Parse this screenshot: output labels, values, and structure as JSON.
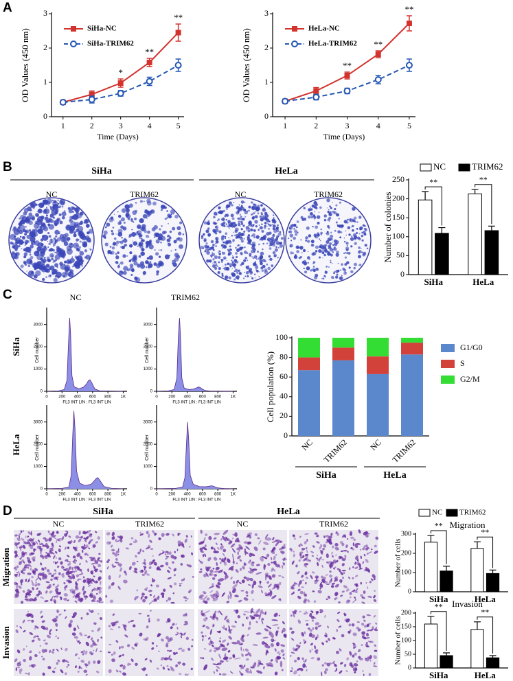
{
  "figure": {
    "panel_labels": [
      "A",
      "B",
      "C",
      "D"
    ],
    "B_groups": [
      "SiHa",
      "HeLa"
    ],
    "B_columns": [
      "NC",
      "TRIM62",
      "NC",
      "TRIM62"
    ],
    "C_columns": [
      "NC",
      "TRIM62"
    ],
    "C_rows": [
      "SiHa",
      "HeLa"
    ],
    "D_groups": [
      "SiHa",
      "HeLa"
    ],
    "D_columns": [
      "NC",
      "TRIM62",
      "NC",
      "TRIM62"
    ],
    "D_rows": [
      "Migration",
      "Invasion"
    ]
  },
  "chart_data": [
    {
      "type": "line",
      "x": [
        1,
        2,
        3,
        4,
        5
      ],
      "xlim": [
        0.6,
        5.2
      ],
      "xticks": [
        1,
        2,
        3,
        4,
        5
      ],
      "ylim": [
        0,
        3
      ],
      "yticks": [
        0,
        1,
        2,
        3
      ],
      "xlabel": "Time (Days)",
      "ylabel": "OD Values (450 nm)",
      "legend": "upper left",
      "series": [
        {
          "name": "SiHa-NC",
          "color": "#d2332f",
          "marker": "square",
          "linestyle": "solid",
          "values": [
            0.42,
            0.65,
            0.98,
            1.58,
            2.45
          ],
          "errors": [
            0.05,
            0.1,
            0.12,
            0.12,
            0.25
          ]
        },
        {
          "name": "SiHa-TRIM62",
          "color": "#2456b3",
          "marker": "circle",
          "linestyle": "dashed",
          "values": [
            0.42,
            0.5,
            0.68,
            1.03,
            1.5
          ],
          "errors": [
            0.05,
            0.1,
            0.08,
            0.12,
            0.18
          ]
        }
      ],
      "annotations": [
        {
          "x": 3,
          "text": "*"
        },
        {
          "x": 4,
          "text": "**"
        },
        {
          "x": 5,
          "text": "**"
        }
      ]
    },
    {
      "type": "line",
      "x": [
        1,
        2,
        3,
        4,
        5
      ],
      "xlim": [
        0.6,
        5.2
      ],
      "xticks": [
        1,
        2,
        3,
        4,
        5
      ],
      "ylim": [
        0,
        3
      ],
      "yticks": [
        0,
        1,
        2,
        3
      ],
      "xlabel": "Time (Days)",
      "ylabel": "OD Values (450 nm)",
      "legend": "upper left",
      "series": [
        {
          "name": "HeLa-NC",
          "color": "#d2332f",
          "marker": "square",
          "linestyle": "solid",
          "values": [
            0.45,
            0.75,
            1.2,
            1.82,
            2.72
          ],
          "errors": [
            0.05,
            0.1,
            0.1,
            0.1,
            0.22
          ]
        },
        {
          "name": "HeLa-TRIM62",
          "color": "#2456b3",
          "marker": "circle",
          "linestyle": "dashed",
          "values": [
            0.45,
            0.57,
            0.75,
            1.08,
            1.5
          ],
          "errors": [
            0.05,
            0.08,
            0.08,
            0.12,
            0.18
          ]
        }
      ],
      "annotations": [
        {
          "x": 3,
          "text": "**"
        },
        {
          "x": 4,
          "text": "**"
        },
        {
          "x": 5,
          "text": "**"
        }
      ]
    },
    {
      "type": "bar",
      "categories": [
        "SiHa",
        "HeLa"
      ],
      "ylabel": "Number of colonies",
      "ylim": [
        0,
        250
      ],
      "yticks": [
        0,
        50,
        100,
        150,
        200,
        250
      ],
      "legend": "top",
      "series": [
        {
          "name": "NC",
          "color": "#ffffff",
          "values": [
            197,
            213
          ],
          "errors": [
            22,
            12
          ]
        },
        {
          "name": "TRIM62",
          "color": "#000000",
          "values": [
            109,
            116
          ],
          "errors": [
            15,
            12
          ]
        }
      ],
      "significance": [
        "**",
        "**"
      ]
    },
    {
      "type": "stacked_bar",
      "categories": [
        "NC",
        "TRIM62",
        "NC",
        "TRIM62"
      ],
      "groups": [
        "SiHa",
        "HeLa"
      ],
      "ylabel": "Cell population (%)",
      "ylim": [
        0,
        100
      ],
      "yticks": [
        0,
        20,
        40,
        60,
        80,
        100
      ],
      "legend": "right",
      "series": [
        {
          "name": "G1/G0",
          "color": "#5b87cc",
          "values": [
            67,
            77,
            63,
            83
          ]
        },
        {
          "name": "S",
          "color": "#d2413a",
          "values": [
            13,
            13,
            18,
            12
          ]
        },
        {
          "name": "G2/M",
          "color": "#33dd33",
          "values": [
            20,
            10,
            19,
            5
          ]
        }
      ]
    },
    {
      "type": "bar",
      "title": "Migration",
      "categories": [
        "SiHa",
        "HeLa"
      ],
      "ylabel": "Number of cells",
      "ylim": [
        0,
        300
      ],
      "yticks": [
        0,
        100,
        200,
        300
      ],
      "legend": "top",
      "series": [
        {
          "name": "NC",
          "color": "#ffffff",
          "values": [
            258,
            225
          ],
          "errors": [
            35,
            35
          ]
        },
        {
          "name": "TRIM62",
          "color": "#000000",
          "values": [
            108,
            95
          ],
          "errors": [
            25,
            18
          ]
        }
      ],
      "significance": [
        "**",
        "**"
      ]
    },
    {
      "type": "bar",
      "title": "Invasion",
      "categories": [
        "SiHa",
        "HeLa"
      ],
      "ylabel": "Number of cells",
      "ylim": [
        0,
        200
      ],
      "yticks": [
        0,
        50,
        100,
        150,
        200
      ],
      "series": [
        {
          "color": "#ffffff",
          "values": [
            160,
            140
          ],
          "errors": [
            28,
            28
          ]
        },
        {
          "color": "#000000",
          "values": [
            45,
            37
          ],
          "errors": [
            10,
            8
          ]
        }
      ],
      "significance": [
        "**",
        "**"
      ]
    },
    {
      "type": "area",
      "color": "#8c8fe6",
      "x": [
        0,
        150,
        230,
        265,
        285,
        300,
        312,
        330,
        360,
        420,
        480,
        520,
        545,
        565,
        590,
        630,
        700,
        1000
      ],
      "values": [
        0,
        20,
        80,
        500,
        2200,
        3300,
        2600,
        700,
        200,
        120,
        180,
        330,
        480,
        520,
        380,
        100,
        20,
        0
      ],
      "xlim": [
        0,
        1050
      ],
      "xticks": [
        0,
        200,
        400,
        600,
        800,
        {
          "value": 1000,
          "label": "1K"
        }
      ],
      "ylim": [
        0,
        3700
      ],
      "yticks": [
        0,
        1000,
        2000,
        3000
      ],
      "xlabel": "FL3 INT LIN : FL3 INT LIN",
      "ylabel": "Cell number"
    },
    {
      "type": "area",
      "color": "#8c8fe6",
      "x": [
        0,
        150,
        230,
        265,
        285,
        300,
        312,
        330,
        360,
        420,
        480,
        520,
        545,
        565,
        590,
        630,
        700,
        1000
      ],
      "values": [
        0,
        20,
        80,
        600,
        2500,
        3300,
        2500,
        600,
        150,
        80,
        100,
        150,
        190,
        180,
        120,
        40,
        10,
        0
      ],
      "xlim": [
        0,
        1050
      ],
      "xticks": [
        0,
        200,
        400,
        600,
        800,
        {
          "value": 1000,
          "label": "1K"
        }
      ],
      "ylim": [
        0,
        3700
      ],
      "yticks": [
        0,
        1000,
        2000,
        3000
      ],
      "xlabel": "FL3 INT LIN : FL3 INT LIN",
      "ylabel": "Cell number"
    },
    {
      "type": "area",
      "color": "#8c8fe6",
      "x": [
        0,
        200,
        290,
        320,
        340,
        355,
        370,
        390,
        430,
        500,
        580,
        620,
        650,
        670,
        700,
        750,
        850,
        1000
      ],
      "values": [
        0,
        20,
        80,
        600,
        2400,
        3500,
        2700,
        800,
        250,
        150,
        200,
        350,
        480,
        500,
        350,
        100,
        20,
        0
      ],
      "xlim": [
        0,
        1050
      ],
      "xticks": [
        0,
        200,
        400,
        600,
        800,
        {
          "value": 1000,
          "label": "1K"
        }
      ],
      "ylim": [
        0,
        3700
      ],
      "yticks": [
        0,
        1000,
        2000,
        3000
      ],
      "xlabel": "FL3 INT LIN : FL3 INT LIN",
      "ylabel": "Cell number"
    },
    {
      "type": "area",
      "color": "#8c8fe6",
      "x": [
        0,
        250,
        340,
        370,
        390,
        405,
        420,
        440,
        480,
        560,
        640,
        680,
        710,
        730,
        760,
        800,
        880,
        1000
      ],
      "values": [
        0,
        20,
        80,
        500,
        2000,
        3000,
        2200,
        600,
        200,
        100,
        90,
        110,
        130,
        130,
        90,
        40,
        10,
        0
      ],
      "xlim": [
        0,
        1050
      ],
      "xticks": [
        0,
        200,
        400,
        600,
        800,
        {
          "value": 1000,
          "label": "1K"
        }
      ],
      "ylim": [
        0,
        3700
      ],
      "yticks": [
        0,
        1000,
        2000,
        3000
      ],
      "xlabel": "FL3 INT LIN : FL3 INT LIN",
      "ylabel": "Cell number"
    }
  ]
}
